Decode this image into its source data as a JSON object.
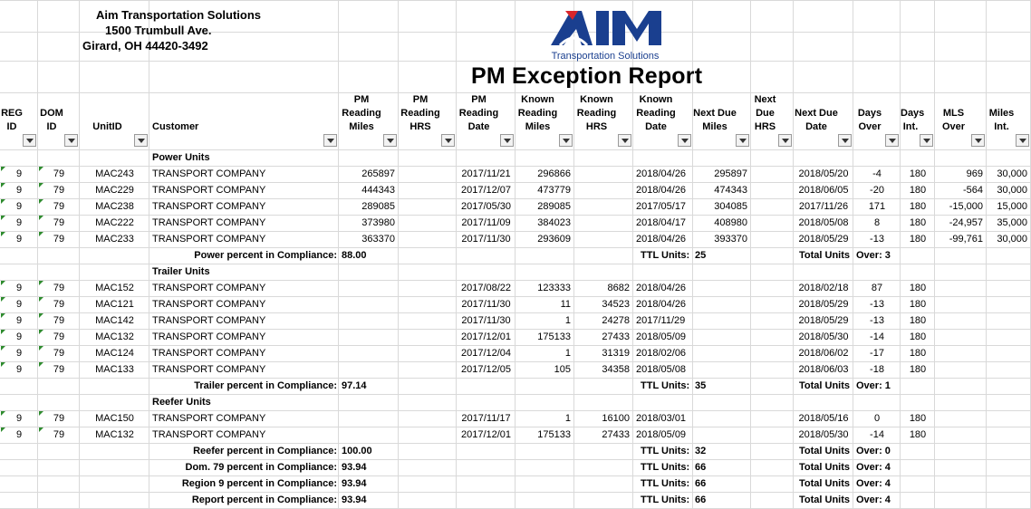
{
  "company": {
    "name": "Aim Transportation Solutions",
    "address1": "1500 Trumbull Ave.",
    "address2": "Girard, OH 44420-3492"
  },
  "logo": {
    "letters": "AIM",
    "tagline": "Transportation Solutions",
    "color": "#1a3f8f",
    "accent": "#d9262b"
  },
  "report_title": "PM Exception Report",
  "headers": [
    "REG\nID",
    "DOM\nID",
    "UnitID",
    "Customer",
    "PM\nReading\nMiles",
    "PM\nReading\nHRS",
    "PM\nReading\nDate",
    "Known\nReading\nMiles",
    "Known\nReading\nHRS",
    "Known\nReading\nDate",
    "Next Due\nMiles",
    "Next\nDue\nHRS",
    "Next Due\nDate",
    "Days\nOver",
    "Days\nInt.",
    "MLS\nOver",
    "Miles\nInt."
  ],
  "sections": [
    {
      "title": "Power Units",
      "rows": [
        [
          "9",
          "79",
          "MAC243",
          "TRANSPORT COMPANY",
          "265897",
          "",
          "2017/11/21",
          "296866",
          "",
          "2018/04/26",
          "295897",
          "",
          "2018/05/20",
          "-4",
          "180",
          "969",
          "30,000"
        ],
        [
          "9",
          "79",
          "MAC229",
          "TRANSPORT COMPANY",
          "444343",
          "",
          "2017/12/07",
          "473779",
          "",
          "2018/04/26",
          "474343",
          "",
          "2018/06/05",
          "-20",
          "180",
          "-564",
          "30,000"
        ],
        [
          "9",
          "79",
          "MAC238",
          "TRANSPORT COMPANY",
          "289085",
          "",
          "2017/05/30",
          "289085",
          "",
          "2017/05/17",
          "304085",
          "",
          "2017/11/26",
          "171",
          "180",
          "-15,000",
          "15,000"
        ],
        [
          "9",
          "79",
          "MAC222",
          "TRANSPORT COMPANY",
          "373980",
          "",
          "2017/11/09",
          "384023",
          "",
          "2018/04/17",
          "408980",
          "",
          "2018/05/08",
          "8",
          "180",
          "-24,957",
          "35,000"
        ],
        [
          "9",
          "79",
          "MAC233",
          "TRANSPORT COMPANY",
          "363370",
          "",
          "2017/11/30",
          "293609",
          "",
          "2018/04/26",
          "393370",
          "",
          "2018/05/29",
          "-13",
          "180",
          "-99,761",
          "30,000"
        ]
      ],
      "summary": {
        "label": "Power percent in Compliance:",
        "value": "88.00",
        "ttl": "TTL Units:",
        "ttl_value": "25",
        "over_label": "Total Units",
        "over": "Over: 3"
      }
    },
    {
      "title": "Trailer Units",
      "rows": [
        [
          "9",
          "79",
          "MAC152",
          "TRANSPORT COMPANY",
          "",
          "",
          "2017/08/22",
          "123333",
          "8682",
          "2018/04/26",
          "",
          "",
          "2018/02/18",
          "87",
          "180",
          "",
          ""
        ],
        [
          "9",
          "79",
          "MAC121",
          "TRANSPORT COMPANY",
          "",
          "",
          "2017/11/30",
          "11",
          "34523",
          "2018/04/26",
          "",
          "",
          "2018/05/29",
          "-13",
          "180",
          "",
          ""
        ],
        [
          "9",
          "79",
          "MAC142",
          "TRANSPORT COMPANY",
          "",
          "",
          "2017/11/30",
          "1",
          "24278",
          "2017/11/29",
          "",
          "",
          "2018/05/29",
          "-13",
          "180",
          "",
          ""
        ],
        [
          "9",
          "79",
          "MAC132",
          "TRANSPORT COMPANY",
          "",
          "",
          "2017/12/01",
          "175133",
          "27433",
          "2018/05/09",
          "",
          "",
          "2018/05/30",
          "-14",
          "180",
          "",
          ""
        ],
        [
          "9",
          "79",
          "MAC124",
          "TRANSPORT COMPANY",
          "",
          "",
          "2017/12/04",
          "1",
          "31319",
          "2018/02/06",
          "",
          "",
          "2018/06/02",
          "-17",
          "180",
          "",
          ""
        ],
        [
          "9",
          "79",
          "MAC133",
          "TRANSPORT COMPANY",
          "",
          "",
          "2017/12/05",
          "105",
          "34358",
          "2018/05/08",
          "",
          "",
          "2018/06/03",
          "-18",
          "180",
          "",
          ""
        ]
      ],
      "summary": {
        "label": "Trailer percent in Compliance:",
        "value": "97.14",
        "ttl": "TTL Units:",
        "ttl_value": "35",
        "over_label": "Total Units",
        "over": "Over: 1"
      }
    },
    {
      "title": "Reefer Units",
      "rows": [
        [
          "9",
          "79",
          "MAC150",
          "TRANSPORT COMPANY",
          "",
          "",
          "2017/11/17",
          "1",
          "16100",
          "2018/03/01",
          "",
          "",
          "2018/05/16",
          "0",
          "180",
          "",
          ""
        ],
        [
          "9",
          "79",
          "MAC132",
          "TRANSPORT COMPANY",
          "",
          "",
          "2017/12/01",
          "175133",
          "27433",
          "2018/05/09",
          "",
          "",
          "2018/05/30",
          "-14",
          "180",
          "",
          ""
        ]
      ],
      "summary": {
        "label": "Reefer percent in Compliance:",
        "value": "100.00",
        "ttl": "TTL Units:",
        "ttl_value": "32",
        "over_label": "Total Units",
        "over": "Over: 0"
      }
    }
  ],
  "totals": [
    {
      "label": "Dom. 79 percent in Compliance:",
      "value": "93.94",
      "ttl": "TTL Units:",
      "ttl_value": "66",
      "over_label": "Total Units",
      "over": "Over: 4"
    },
    {
      "label": "Region 9 percent in Compliance:",
      "value": "93.94",
      "ttl": "TTL Units:",
      "ttl_value": "66",
      "over_label": "Total Units",
      "over": "Over: 4"
    },
    {
      "label": "Report percent in Compliance:",
      "value": "93.94",
      "ttl": "TTL Units:",
      "ttl_value": "66",
      "over_label": "Total Units",
      "over": "Over: 4"
    }
  ]
}
